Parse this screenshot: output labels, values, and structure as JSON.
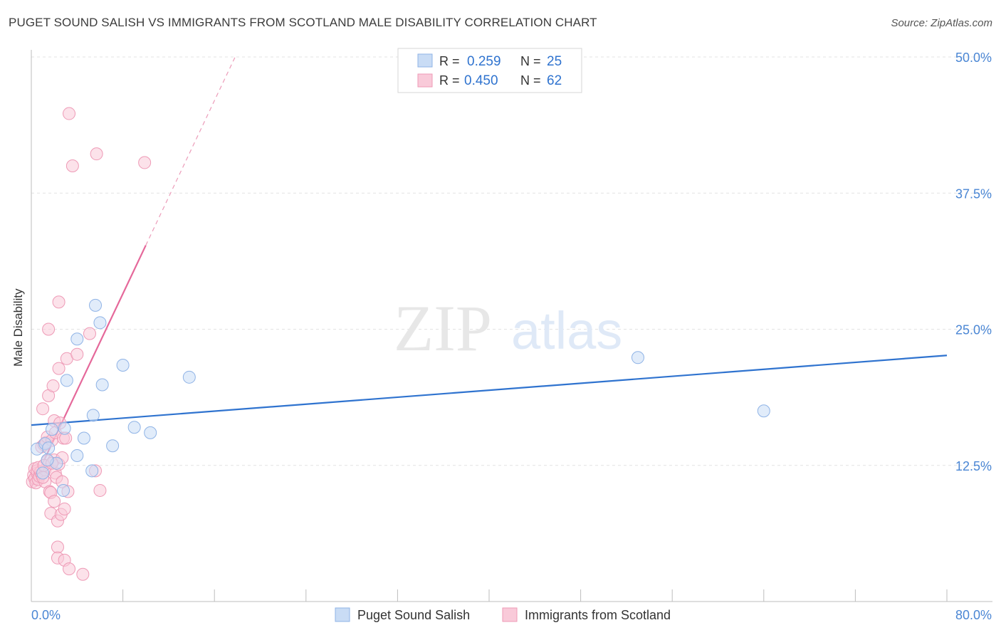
{
  "title": "PUGET SOUND SALISH VS IMMIGRANTS FROM SCOTLAND MALE DISABILITY CORRELATION CHART",
  "source": "Source: ZipAtlas.com",
  "watermark": {
    "zip": "ZIP",
    "atlas": "atlas"
  },
  "colors": {
    "blue_fill": "#c9dcf5",
    "blue_stroke": "#8fb3e6",
    "blue_line": "#2f73cf",
    "pink_fill": "#f9cad9",
    "pink_stroke": "#ee9ab6",
    "pink_line": "#e5689a",
    "axis_text": "#4a86d4",
    "grid": "#e3e3e3"
  },
  "legend": {
    "series": [
      {
        "r_label": "R =",
        "r_value": "0.259",
        "n_label": "N =",
        "n_value": "25"
      },
      {
        "r_label": "R =",
        "r_value": "0.450",
        "n_label": "N =",
        "n_value": "62"
      }
    ]
  },
  "bottom_legend": [
    "Puget Sound Salish",
    "Immigrants from Scotland"
  ],
  "chart_data": {
    "type": "scatter",
    "title": "PUGET SOUND SALISH VS IMMIGRANTS FROM SCOTLAND MALE DISABILITY CORRELATION CHART",
    "xlabel": "",
    "ylabel": "Male Disability",
    "xlim": [
      0,
      80
    ],
    "ylim": [
      0,
      50
    ],
    "x_tick_labels": [
      "0.0%",
      "80.0%"
    ],
    "y_ticks": [
      12.5,
      25.0,
      37.5,
      50.0
    ],
    "y_tick_labels": [
      "12.5%",
      "25.0%",
      "37.5%",
      "50.0%"
    ],
    "grid": true,
    "series": [
      {
        "name": "Puget Sound Salish",
        "color": "#8fb3e6",
        "points": [
          [
            0.5,
            14.0
          ],
          [
            1.2,
            14.5
          ],
          [
            1.5,
            14.1
          ],
          [
            2.2,
            12.7
          ],
          [
            2.8,
            10.2
          ],
          [
            1.8,
            15.8
          ],
          [
            2.9,
            15.9
          ],
          [
            3.1,
            20.3
          ],
          [
            4.0,
            13.4
          ],
          [
            5.3,
            12.0
          ],
          [
            4.6,
            15.0
          ],
          [
            5.4,
            17.1
          ],
          [
            5.6,
            27.2
          ],
          [
            6.0,
            25.6
          ],
          [
            6.2,
            19.9
          ],
          [
            7.1,
            14.3
          ],
          [
            8.0,
            21.7
          ],
          [
            9.0,
            16.0
          ],
          [
            10.4,
            15.5
          ],
          [
            13.8,
            20.6
          ],
          [
            4.0,
            24.1
          ],
          [
            1.0,
            11.8
          ],
          [
            1.4,
            13.0
          ],
          [
            53.0,
            22.4
          ],
          [
            64.0,
            17.5
          ]
        ],
        "trend": {
          "x": [
            0,
            80
          ],
          "y": [
            16.2,
            22.6
          ],
          "dashed_extension": false
        }
      },
      {
        "name": "Immigrants from Scotland",
        "color": "#ee9ab6",
        "points": [
          [
            0.1,
            11.0
          ],
          [
            0.2,
            11.6
          ],
          [
            0.3,
            12.2
          ],
          [
            0.3,
            11.3
          ],
          [
            0.4,
            10.9
          ],
          [
            0.5,
            11.8
          ],
          [
            0.5,
            12.0
          ],
          [
            0.6,
            11.2
          ],
          [
            0.7,
            11.5
          ],
          [
            0.8,
            11.9
          ],
          [
            0.9,
            14.2
          ],
          [
            0.9,
            11.7
          ],
          [
            1.0,
            17.7
          ],
          [
            1.1,
            14.4
          ],
          [
            1.2,
            12.1
          ],
          [
            1.2,
            11.0
          ],
          [
            1.3,
            14.6
          ],
          [
            1.4,
            15.1
          ],
          [
            1.4,
            12.9
          ],
          [
            1.5,
            18.9
          ],
          [
            1.5,
            25.0
          ],
          [
            1.6,
            10.1
          ],
          [
            1.7,
            8.1
          ],
          [
            1.7,
            10.0
          ],
          [
            1.8,
            14.8
          ],
          [
            1.9,
            19.8
          ],
          [
            2.0,
            16.6
          ],
          [
            2.0,
            13.0
          ],
          [
            2.0,
            9.2
          ],
          [
            2.1,
            11.8
          ],
          [
            2.1,
            15.5
          ],
          [
            2.2,
            11.4
          ],
          [
            2.3,
            5.0
          ],
          [
            2.3,
            4.0
          ],
          [
            2.3,
            7.4
          ],
          [
            2.4,
            27.5
          ],
          [
            2.4,
            21.4
          ],
          [
            2.4,
            12.6
          ],
          [
            2.5,
            16.4
          ],
          [
            2.6,
            8.0
          ],
          [
            2.7,
            13.2
          ],
          [
            2.7,
            11.0
          ],
          [
            2.8,
            15.0
          ],
          [
            2.9,
            3.8
          ],
          [
            2.9,
            8.5
          ],
          [
            3.0,
            15.0
          ],
          [
            3.1,
            22.3
          ],
          [
            3.2,
            10.1
          ],
          [
            3.3,
            3.0
          ],
          [
            3.3,
            44.8
          ],
          [
            3.6,
            40.0
          ],
          [
            4.0,
            22.7
          ],
          [
            4.5,
            2.5
          ],
          [
            5.1,
            24.6
          ],
          [
            5.6,
            12.0
          ],
          [
            5.7,
            41.1
          ],
          [
            6.0,
            10.2
          ],
          [
            9.9,
            40.3
          ],
          [
            0.6,
            12.3
          ],
          [
            1.0,
            11.4
          ],
          [
            1.1,
            12.5
          ],
          [
            1.8,
            12.7
          ]
        ],
        "trend": {
          "x": [
            0,
            10.0
          ],
          "y": [
            10.5,
            32.7
          ],
          "dashed_extension": {
            "x": [
              10.0,
              17.9
            ],
            "y": [
              32.7,
              50.2
            ]
          }
        }
      }
    ]
  }
}
